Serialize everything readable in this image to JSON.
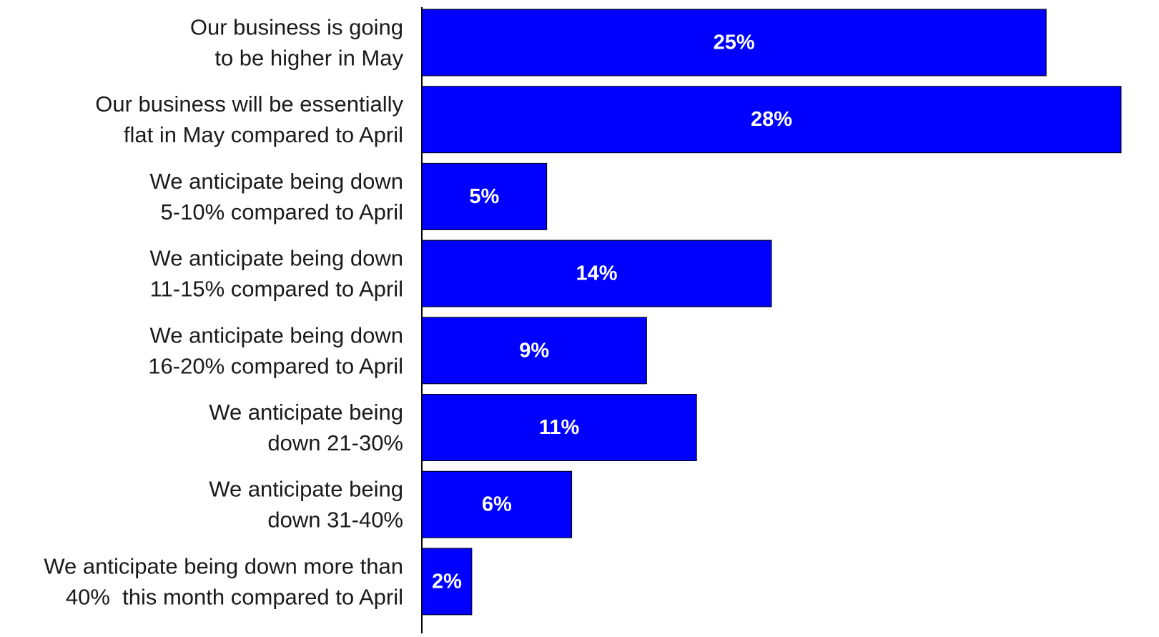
{
  "chart_data": {
    "type": "bar",
    "orientation": "horizontal",
    "categories": [
      [
        "Our business is going",
        "to be higher in May"
      ],
      [
        "Our business will be essentially",
        "flat in May compared to April"
      ],
      [
        "We anticipate being down",
        "5-10% compared to April"
      ],
      [
        "We anticipate being down",
        "11-15% compared to April"
      ],
      [
        "We anticipate being down",
        "16-20% compared to April"
      ],
      [
        "We anticipate being",
        "down 21-30%"
      ],
      [
        "We anticipate being",
        "down 31-40%"
      ],
      [
        "We anticipate being down more than",
        "40%  this month compared to April"
      ]
    ],
    "values": [
      25,
      28,
      5,
      14,
      9,
      11,
      6,
      2
    ],
    "data_labels": [
      "25%",
      "28%",
      "5%",
      "14%",
      "9%",
      "11%",
      "6%",
      "2%"
    ],
    "xlim": [
      0,
      28
    ],
    "grid": false,
    "legend": "none",
    "colors": {
      "bar": "#0000FF",
      "bar_edge": "#000000",
      "label_text": "#ffffff",
      "category_text": "#1a1a1a",
      "axis": "#000000"
    }
  }
}
